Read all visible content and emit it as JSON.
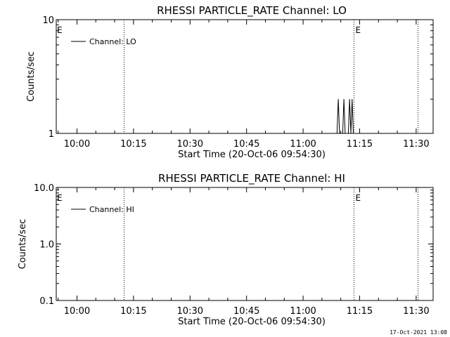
{
  "footer_timestamp": "17-Oct-2021 13:08",
  "chart_data": [
    {
      "type": "line",
      "title": "RHESSI PARTICLE_RATE Channel: LO",
      "xlabel": "Start Time (20-Oct-06 09:54:30)",
      "ylabel": "Counts/sec",
      "yscale": "log",
      "ylim": [
        1,
        10
      ],
      "y_ticks": [
        "1",
        "10"
      ],
      "x_ticks": [
        "10:00",
        "10:15",
        "10:30",
        "10:45",
        "11:00",
        "11:15",
        "11:30"
      ],
      "xlim": [
        "09:54:30",
        "11:34:30"
      ],
      "legend": {
        "label": "Channel: LO",
        "position": "top-left"
      },
      "markers": [
        {
          "time": "10:12:30",
          "style": "dotted",
          "label": ""
        },
        {
          "time": "11:13:30",
          "style": "dotted",
          "label": "E"
        },
        {
          "time": "11:30:30",
          "style": "dotted",
          "label": ""
        }
      ],
      "edge_label_left": "E",
      "series": [
        {
          "name": "Channel: LO",
          "points": [
            [
              "11:09:00",
              1
            ],
            [
              "11:09:20",
              2
            ],
            [
              "11:09:40",
              1
            ],
            [
              "11:10:30",
              1
            ],
            [
              "11:10:50",
              2
            ],
            [
              "11:11:10",
              1
            ],
            [
              "11:12:00",
              1
            ],
            [
              "11:12:20",
              2
            ],
            [
              "11:12:40",
              1
            ],
            [
              "11:13:00",
              2
            ],
            [
              "11:13:20",
              1
            ]
          ]
        }
      ]
    },
    {
      "type": "line",
      "title": "RHESSI PARTICLE_RATE Channel: HI",
      "xlabel": "Start Time (20-Oct-06 09:54:30)",
      "ylabel": "Counts/sec",
      "yscale": "log",
      "ylim": [
        0.1,
        10
      ],
      "y_ticks": [
        "0.1",
        "1.0",
        "10.0"
      ],
      "x_ticks": [
        "10:00",
        "10:15",
        "10:30",
        "10:45",
        "11:00",
        "11:15",
        "11:30"
      ],
      "xlim": [
        "09:54:30",
        "11:34:30"
      ],
      "legend": {
        "label": "Channel: HI",
        "position": "top-left"
      },
      "markers": [
        {
          "time": "10:12:30",
          "style": "dotted",
          "label": ""
        },
        {
          "time": "11:13:30",
          "style": "dotted",
          "label": "E"
        },
        {
          "time": "11:30:30",
          "style": "dotted",
          "label": ""
        }
      ],
      "edge_label_left": "E",
      "series": [
        {
          "name": "Channel: HI",
          "points": []
        }
      ]
    }
  ]
}
